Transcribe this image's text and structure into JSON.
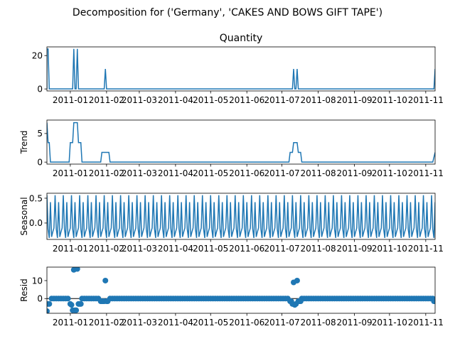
{
  "chart_data": {
    "type": "line",
    "suptitle": "Decomposition for ('Germany', 'CAKES AND BOWS GIFT  TAPE')",
    "x_start": "2010-12-12",
    "x_end": "2011-11-09",
    "x_ticks": [
      "2011-01",
      "2011-02",
      "2011-03",
      "2011-04",
      "2011-05",
      "2011-06",
      "2011-07",
      "2011-08",
      "2011-09",
      "2011-10",
      "2011-11"
    ],
    "x_tick_dates": [
      "2011-01-01",
      "2011-02-01",
      "2011-03-01",
      "2011-04-01",
      "2011-05-01",
      "2011-06-01",
      "2011-07-01",
      "2011-08-01",
      "2011-09-01",
      "2011-10-01",
      "2011-11-01"
    ],
    "panels": [
      {
        "name": "observed",
        "title": "Quantity",
        "ylabel": "",
        "kind": "line",
        "ylim": [
          -1.2,
          25.2
        ],
        "yticks": [
          0,
          20
        ],
        "color": "#1f77b4",
        "points": [
          [
            "2010-12-12",
            0
          ],
          [
            "2010-12-12",
            24
          ],
          [
            "2010-12-13",
            24
          ],
          [
            "2010-12-14",
            0
          ],
          [
            "2011-01-03",
            0
          ],
          [
            "2011-01-04",
            24
          ],
          [
            "2011-01-05",
            0
          ],
          [
            "2011-01-06",
            0
          ],
          [
            "2011-01-07",
            24
          ],
          [
            "2011-01-08",
            0
          ],
          [
            "2011-01-30",
            0
          ],
          [
            "2011-01-31",
            12
          ],
          [
            "2011-02-01",
            0
          ],
          [
            "2011-07-10",
            0
          ],
          [
            "2011-07-11",
            12
          ],
          [
            "2011-07-12",
            0
          ],
          [
            "2011-07-13",
            0
          ],
          [
            "2011-07-14",
            12
          ],
          [
            "2011-07-15",
            0
          ],
          [
            "2011-11-08",
            0
          ],
          [
            "2011-11-09",
            12
          ]
        ]
      },
      {
        "name": "trend",
        "title": "",
        "ylabel": "Trend",
        "kind": "line",
        "ylim": [
          -0.35,
          7.35
        ],
        "yticks": [
          0,
          5
        ],
        "color": "#1f77b4",
        "points": [
          [
            "2010-12-12",
            6.9
          ],
          [
            "2010-12-13",
            3.4
          ],
          [
            "2010-12-14",
            3.4
          ],
          [
            "2010-12-15",
            0
          ],
          [
            "2010-12-31",
            0
          ],
          [
            "2011-01-01",
            3.4
          ],
          [
            "2011-01-03",
            3.4
          ],
          [
            "2011-01-04",
            6.9
          ],
          [
            "2011-01-07",
            6.9
          ],
          [
            "2011-01-08",
            3.4
          ],
          [
            "2011-01-10",
            3.4
          ],
          [
            "2011-01-11",
            0
          ],
          [
            "2011-01-27",
            0
          ],
          [
            "2011-01-28",
            1.7
          ],
          [
            "2011-02-03",
            1.7
          ],
          [
            "2011-02-04",
            0
          ],
          [
            "2011-07-07",
            0
          ],
          [
            "2011-07-08",
            1.7
          ],
          [
            "2011-07-10",
            1.7
          ],
          [
            "2011-07-11",
            3.4
          ],
          [
            "2011-07-14",
            3.4
          ],
          [
            "2011-07-15",
            1.7
          ],
          [
            "2011-07-17",
            1.7
          ],
          [
            "2011-07-18",
            0
          ],
          [
            "2011-11-07",
            0
          ],
          [
            "2011-11-09",
            1.7
          ]
        ]
      },
      {
        "name": "seasonal",
        "title": "",
        "ylabel": "Seasonal",
        "kind": "seasonal",
        "ylim": [
          -0.33,
          0.6
        ],
        "yticks": [
          0.0,
          0.5
        ],
        "color": "#1f77b4",
        "period_days": 7,
        "pattern": [
          0.56,
          -0.12,
          -0.3,
          0.42,
          -0.28,
          -0.18,
          -0.1
        ]
      },
      {
        "name": "resid",
        "title": "",
        "ylabel": "Resid",
        "kind": "scatter",
        "ylim": [
          -8.2,
          17.5
        ],
        "yticks": [
          0,
          10
        ],
        "color": "#1f77b4",
        "baseline": 0,
        "points": [
          [
            "2010-12-12",
            -7
          ],
          [
            "2010-12-13",
            -3
          ],
          [
            "2010-12-14",
            -3
          ],
          [
            "2011-01-01",
            -3
          ],
          [
            "2011-01-02",
            -3.5
          ],
          [
            "2011-01-03",
            -6.5
          ],
          [
            "2011-01-04",
            16
          ],
          [
            "2011-01-05",
            -6.5
          ],
          [
            "2011-01-06",
            -6.5
          ],
          [
            "2011-01-07",
            16.5
          ],
          [
            "2011-01-08",
            -3
          ],
          [
            "2011-01-09",
            -3
          ],
          [
            "2011-01-10",
            -3
          ],
          [
            "2011-01-27",
            -1.5
          ],
          [
            "2011-01-28",
            -1.5
          ],
          [
            "2011-01-29",
            -1.5
          ],
          [
            "2011-01-30",
            -1.5
          ],
          [
            "2011-01-31",
            10
          ],
          [
            "2011-02-01",
            -1.5
          ],
          [
            "2011-02-02",
            -1.5
          ],
          [
            "2011-07-08",
            -1.5
          ],
          [
            "2011-07-09",
            -1.5
          ],
          [
            "2011-07-10",
            -3
          ],
          [
            "2011-07-11",
            9
          ],
          [
            "2011-07-12",
            -3.5
          ],
          [
            "2011-07-13",
            -3
          ],
          [
            "2011-07-14",
            10
          ],
          [
            "2011-07-15",
            -1.5
          ],
          [
            "2011-07-16",
            -1.5
          ],
          [
            "2011-07-17",
            -1.5
          ],
          [
            "2011-11-08",
            -1.5
          ],
          [
            "2011-11-09",
            -1.5
          ]
        ]
      }
    ]
  }
}
